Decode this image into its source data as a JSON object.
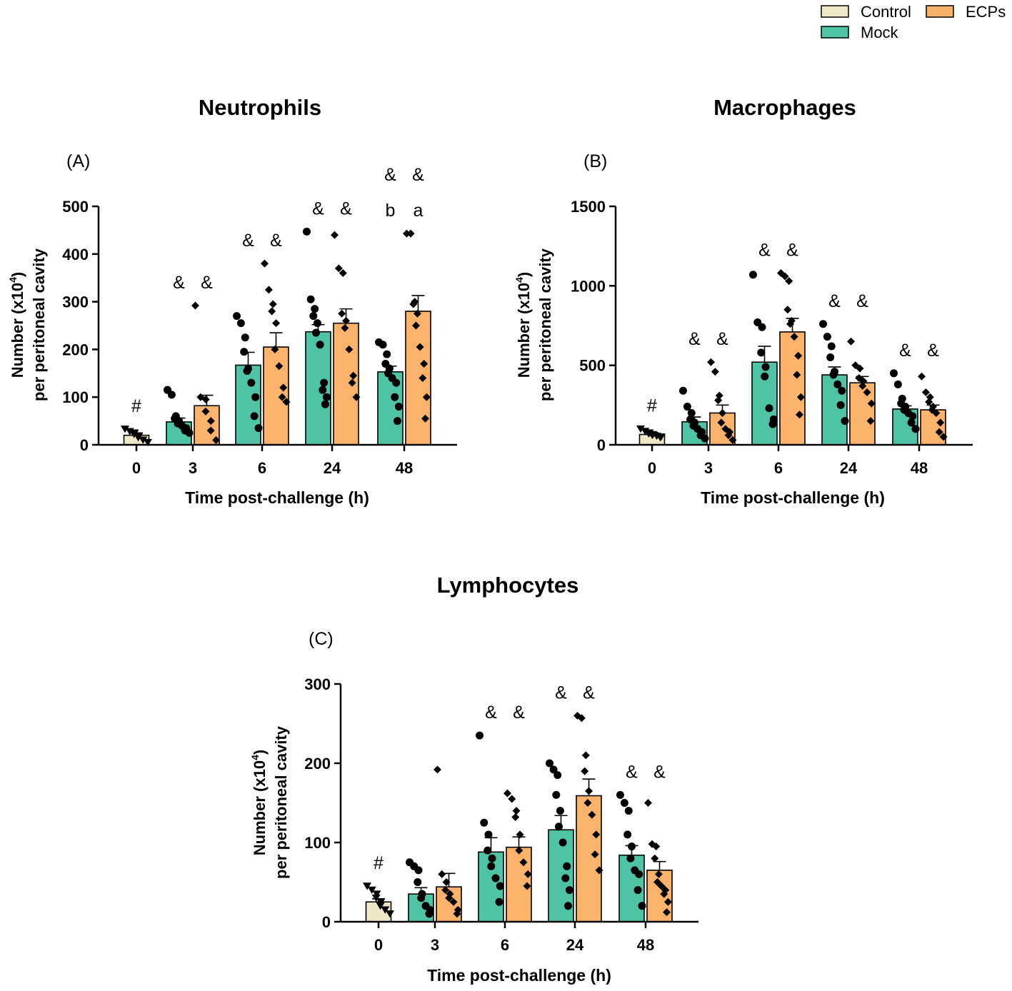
{
  "legend": {
    "entries": [
      {
        "name": "Control",
        "color": "#efe8c6"
      },
      {
        "name": "Mock",
        "color": "#4fc4a5"
      },
      {
        "name": "ECPs",
        "color": "#fbb36c"
      }
    ]
  },
  "chart_data": [
    {
      "type": "bar",
      "panel": "(A)",
      "title": "Neutrophils",
      "xlabel": "Time post-challenge (h)",
      "ylabel_line1": "Number (x10",
      "ylabel_sup": "4",
      "ylabel_line1_end": ")",
      "ylabel_line2": "per peritoneal cavity",
      "categories": [
        "0",
        "3",
        "6",
        "24",
        "48"
      ],
      "ylim": [
        0,
        500
      ],
      "yticks": [
        "0",
        "100",
        "200",
        "300",
        "400",
        "500"
      ],
      "series": [
        {
          "name": "Control",
          "values": [
            20,
            null,
            null,
            null,
            null
          ],
          "errors": [
            5,
            null,
            null,
            null,
            null
          ],
          "points": [
            [
              33,
              28,
              25,
              22,
              18,
              15,
              10,
              5
            ],
            [],
            [],
            [],
            []
          ]
        },
        {
          "name": "Mock",
          "values": [
            null,
            48,
            167,
            237,
            153
          ],
          "errors": [
            null,
            8,
            27,
            15,
            12
          ],
          "points": [
            [],
            [
              115,
              105,
              60,
              55,
              50,
              45,
              40,
              35,
              30,
              25
            ],
            [
              270,
              255,
              225,
              195,
              160,
              155,
              130,
              100,
              60,
              35
            ],
            [
              447,
              305,
              285,
              270,
              255,
              235,
              210,
              130,
              115,
              100,
              85
            ],
            [
              215,
              210,
              190,
              170,
              160,
              150,
              140,
              130,
              100,
              80,
              50
            ]
          ]
        },
        {
          "name": "ECPs",
          "values": [
            null,
            82,
            205,
            255,
            280
          ],
          "errors": [
            null,
            22,
            30,
            30,
            33
          ],
          "points": [
            [],
            [
              292,
              100,
              95,
              70,
              50,
              30,
              10
            ],
            [
              380,
              325,
              295,
              280,
              255,
              200,
              165,
              120,
              100,
              90
            ],
            [
              440,
              370,
              360,
              275,
              260,
              245,
              200,
              145,
              130,
              100
            ],
            [
              443,
              443,
              300,
              295,
              275,
              250,
              205,
              170,
              140,
              100,
              55
            ]
          ]
        }
      ],
      "annotations": [
        {
          "category": "0",
          "series": "Control",
          "text": "#"
        },
        {
          "category": "3",
          "series": "Mock",
          "text": "&"
        },
        {
          "category": "3",
          "series": "ECPs",
          "text": "&"
        },
        {
          "category": "6",
          "series": "Mock",
          "text": "&"
        },
        {
          "category": "6",
          "series": "ECPs",
          "text": "&"
        },
        {
          "category": "24",
          "series": "Mock",
          "text": "&"
        },
        {
          "category": "24",
          "series": "ECPs",
          "text": "&"
        },
        {
          "category": "48",
          "series": "Mock",
          "text": "b"
        },
        {
          "category": "48",
          "series": "ECPs",
          "text": "a"
        },
        {
          "category": "48",
          "series": "Mock",
          "text": "&"
        },
        {
          "category": "48",
          "series": "ECPs",
          "text": "&"
        }
      ]
    },
    {
      "type": "bar",
      "panel": "(B)",
      "title": "Macrophages",
      "xlabel": "Time post-challenge (h)",
      "ylabel_line1": "Number (x10",
      "ylabel_sup": "4",
      "ylabel_line1_end": ")",
      "ylabel_line2": "per peritoneal cavity",
      "categories": [
        "0",
        "3",
        "6",
        "24",
        "48"
      ],
      "ylim": [
        0,
        1500
      ],
      "yticks": [
        "0",
        "500",
        "1000",
        "1500"
      ],
      "series": [
        {
          "name": "Control",
          "values": [
            65,
            null,
            null,
            null,
            null
          ],
          "errors": [
            12,
            null,
            null,
            null,
            null
          ],
          "points": [
            [
              100,
              85,
              75,
              70,
              65,
              60,
              55,
              50,
              45
            ],
            [],
            [],
            [],
            []
          ]
        },
        {
          "name": "Mock",
          "values": [
            null,
            145,
            520,
            440,
            225
          ],
          "errors": [
            null,
            30,
            100,
            50,
            20
          ],
          "points": [
            [],
            [
              340,
              240,
              200,
              160,
              140,
              120,
              100,
              80,
              60,
              40
            ],
            [
              1070,
              770,
              740,
              580,
              490,
              430,
              230,
              160,
              130
            ],
            [
              760,
              680,
              620,
              550,
              460,
              440,
              380,
              340,
              250,
              150
            ],
            [
              450,
              380,
              290,
              260,
              240,
              220,
              200,
              180,
              140,
              100
            ]
          ]
        },
        {
          "name": "ECPs",
          "values": [
            null,
            200,
            710,
            390,
            220
          ],
          "errors": [
            null,
            50,
            85,
            40,
            30
          ],
          "points": [
            [],
            [
              520,
              460,
              310,
              280,
              200,
              140,
              100,
              80,
              60,
              30
            ],
            [
              1080,
              1060,
              1030,
              850,
              780,
              760,
              680,
              560,
              440,
              300,
              190
            ],
            [
              650,
              500,
              480,
              420,
              400,
              370,
              330,
              260,
              150
            ],
            [
              430,
              330,
              300,
              270,
              240,
              220,
              200,
              140,
              80,
              50
            ]
          ]
        }
      ],
      "annotations": [
        {
          "category": "0",
          "series": "Control",
          "text": "#"
        },
        {
          "category": "3",
          "series": "Mock",
          "text": "&"
        },
        {
          "category": "3",
          "series": "ECPs",
          "text": "&"
        },
        {
          "category": "6",
          "series": "Mock",
          "text": "&"
        },
        {
          "category": "6",
          "series": "ECPs",
          "text": "&"
        },
        {
          "category": "24",
          "series": "Mock",
          "text": "&"
        },
        {
          "category": "24",
          "series": "ECPs",
          "text": "&"
        },
        {
          "category": "48",
          "series": "Mock",
          "text": "&"
        },
        {
          "category": "48",
          "series": "ECPs",
          "text": "&"
        }
      ]
    },
    {
      "type": "bar",
      "panel": "(C)",
      "title": "Lymphocytes",
      "xlabel": "Time post-challenge (h)",
      "ylabel_line1": "Number (x10",
      "ylabel_sup": "4",
      "ylabel_line1_end": ")",
      "ylabel_line2": "per peritoneal cavity",
      "categories": [
        "0",
        "3",
        "6",
        "24",
        "48"
      ],
      "ylim": [
        0,
        300
      ],
      "yticks": [
        "0",
        "100",
        "200",
        "300"
      ],
      "series": [
        {
          "name": "Control",
          "values": [
            25,
            null,
            null,
            null,
            null
          ],
          "errors": [
            4,
            null,
            null,
            null,
            null
          ],
          "points": [
            [
              45,
              40,
              35,
              30,
              25,
              20,
              15,
              10
            ],
            [],
            [],
            [],
            []
          ]
        },
        {
          "name": "Mock",
          "values": [
            null,
            35,
            88,
            116,
            84
          ],
          "errors": [
            null,
            8,
            18,
            18,
            12
          ],
          "points": [
            [],
            [
              75,
              70,
              65,
              50,
              35,
              30,
              20,
              15,
              10
            ],
            [
              235,
              125,
              110,
              90,
              80,
              70,
              55,
              45,
              25
            ],
            [
              200,
              192,
              185,
              160,
              140,
              120,
              100,
              70,
              55,
              40,
              20
            ],
            [
              160,
              150,
              140,
              110,
              95,
              80,
              65,
              60,
              40,
              20
            ]
          ]
        },
        {
          "name": "ECPs",
          "values": [
            null,
            44,
            94,
            159,
            65
          ],
          "errors": [
            null,
            17,
            13,
            21,
            11
          ],
          "points": [
            [],
            [
              192,
              60,
              50,
              40,
              35,
              30,
              25,
              15,
              10
            ],
            [
              162,
              155,
              140,
              132,
              110,
              90,
              75,
              60,
              45
            ],
            [
              260,
              257,
              210,
              190,
              165,
              150,
              135,
              110,
              85,
              65
            ],
            [
              150,
              98,
              95,
              80,
              60,
              50,
              45,
              40,
              35,
              25,
              12
            ]
          ]
        }
      ],
      "annotations": [
        {
          "category": "0",
          "series": "Control",
          "text": "#"
        },
        {
          "category": "6",
          "series": "Mock",
          "text": "&"
        },
        {
          "category": "6",
          "series": "ECPs",
          "text": "&"
        },
        {
          "category": "24",
          "series": "Mock",
          "text": "&"
        },
        {
          "category": "24",
          "series": "ECPs",
          "text": "&"
        },
        {
          "category": "48",
          "series": "Mock",
          "text": "&"
        },
        {
          "category": "48",
          "series": "ECPs",
          "text": "&"
        }
      ]
    }
  ]
}
